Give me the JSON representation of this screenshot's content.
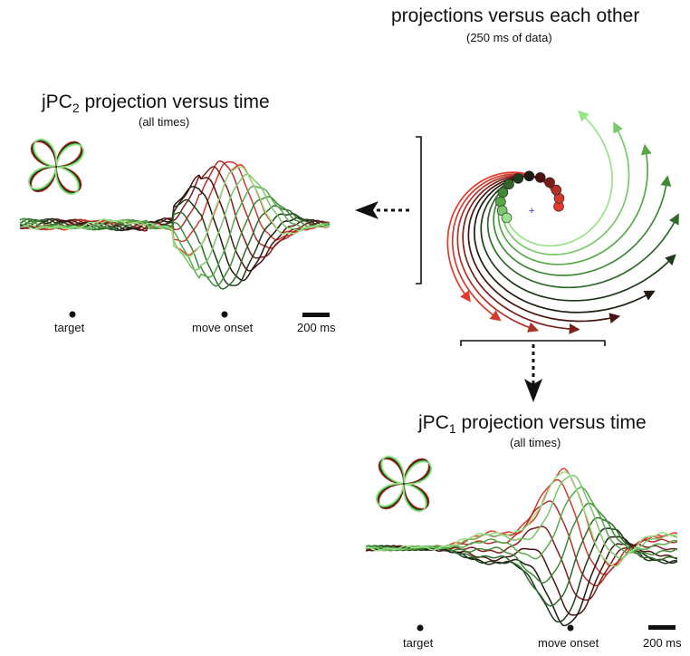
{
  "panels": {
    "phase": {
      "title": "projections versus each other",
      "subtitle": "(250 ms of data)"
    },
    "jpc2": {
      "title_main": "jPC",
      "title_sub": "2",
      "title_rest": " projection versus time",
      "subtitle": "(all times)",
      "marker_target": "target",
      "marker_move": "move onset",
      "scale_label": "200 ms"
    },
    "jpc1": {
      "title_main": "jPC",
      "title_sub": "1",
      "title_rest": " projection versus time",
      "subtitle": "(all times)",
      "marker_target": "target",
      "marker_move": "move onset",
      "scale_label": "200 ms"
    }
  },
  "colors": {
    "palette": [
      "#e53a2a",
      "#d23b2c",
      "#b0312a",
      "#7a1f1b",
      "#4a1410",
      "#1f1a12",
      "#1f3b1c",
      "#2f6a2a",
      "#3f8a36",
      "#58a84a",
      "#78c86a",
      "#98e28a"
    ],
    "arrow": "#111111",
    "origin": "#2233cc"
  }
}
